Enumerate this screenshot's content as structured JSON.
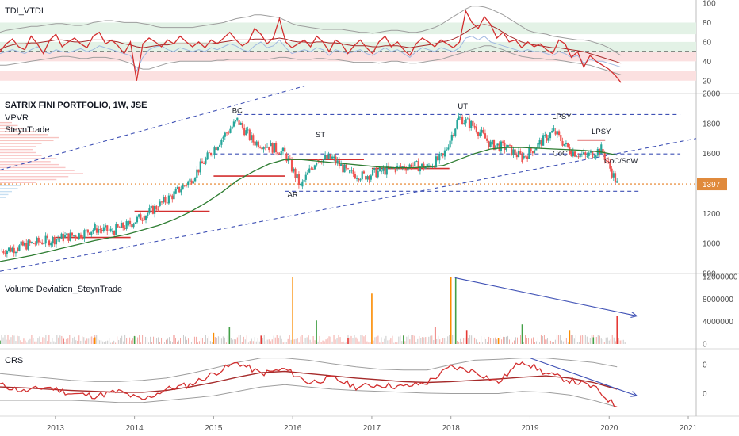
{
  "colors": {
    "candle_up": "#26a69a",
    "candle_down": "#ef5350",
    "red_line": "#d32f2f",
    "ma_green": "#2e7d32",
    "navy": "#3f51b5",
    "gray": "#9e9e9e",
    "orange": "#e67e22",
    "zone_green": "#e3f2e6",
    "zone_red": "#fbe0e0",
    "price_label_bg": "#e08a3c",
    "axis_text": "#4a4a4a"
  },
  "chart_data": [
    {
      "type": "line",
      "panel": "tdi",
      "title": "TDI_VTDI",
      "ylim": [
        10,
        100
      ],
      "yticks": [
        "100",
        "80",
        "60",
        "40",
        "20"
      ],
      "bands": [
        {
          "from": 68,
          "to": 80,
          "color": "green"
        },
        {
          "from": 50,
          "to": 60,
          "color": "green"
        },
        {
          "from": 40,
          "to": 50,
          "color": "red"
        },
        {
          "from": 20,
          "to": 30,
          "color": "red"
        }
      ],
      "midline": 50,
      "series": [
        {
          "key": "fast",
          "color": "red",
          "values": [
            50,
            58,
            63,
            55,
            52,
            66,
            58,
            48,
            62,
            68,
            55,
            60,
            64,
            58,
            54,
            66,
            70,
            58,
            62,
            56,
            48,
            60,
            20,
            58,
            64,
            60,
            55,
            62,
            58,
            66,
            60,
            55,
            60,
            54,
            62,
            58,
            64,
            70,
            62,
            56,
            60,
            74,
            68,
            58,
            64,
            84,
            60,
            54,
            58,
            62,
            55,
            66,
            60,
            50,
            62,
            58,
            48,
            56,
            62,
            54,
            48,
            60,
            66,
            55,
            60,
            52,
            46,
            58,
            64,
            60,
            55,
            62,
            58,
            54,
            60,
            92,
            80,
            74,
            86,
            78,
            64,
            70,
            60,
            62,
            54,
            60,
            55,
            58,
            52,
            48,
            62,
            58,
            44,
            50,
            34,
            46,
            40,
            36,
            32,
            26,
            18
          ]
        },
        {
          "key": "slow",
          "color": "darkred",
          "values": [
            52,
            55,
            57,
            58,
            58,
            59,
            59,
            60,
            61,
            62,
            62,
            61,
            60,
            60,
            61,
            62,
            62,
            62,
            61,
            60,
            58,
            57,
            55,
            54,
            55,
            56,
            57,
            57,
            58,
            58,
            58,
            58,
            58,
            58,
            58,
            59,
            60,
            61,
            62,
            62,
            62,
            63,
            63,
            62,
            63,
            64,
            63,
            61,
            60,
            60,
            59,
            60,
            60,
            59,
            59,
            58,
            57,
            56,
            56,
            56,
            55,
            55,
            56,
            56,
            56,
            55,
            54,
            55,
            56,
            57,
            58,
            60,
            61,
            63,
            66,
            70,
            74,
            77,
            78,
            77,
            74,
            70,
            66,
            63,
            60,
            58,
            57,
            56,
            55,
            54,
            54,
            53,
            52,
            51,
            50,
            48,
            46,
            44,
            42,
            40,
            38
          ]
        },
        {
          "key": "upper",
          "color": "gray",
          "values": [
            70,
            72,
            73,
            74,
            75,
            76,
            76,
            77,
            78,
            79,
            79,
            78,
            77,
            77,
            78,
            80,
            81,
            82,
            82,
            81,
            80,
            80,
            80,
            79,
            78,
            76,
            75,
            75,
            75,
            75,
            75,
            75,
            76,
            77,
            78,
            79,
            80,
            82,
            84,
            85,
            86,
            88,
            88,
            87,
            86,
            85,
            82,
            79,
            77,
            76,
            75,
            74,
            73,
            73,
            73,
            73,
            72,
            71,
            70,
            70,
            69,
            70,
            71,
            72,
            72,
            71,
            70,
            70,
            71,
            73,
            75,
            78,
            82,
            86,
            90,
            94,
            97,
            97,
            96,
            94,
            91,
            88,
            84,
            80,
            76,
            72,
            70,
            69,
            68,
            66,
            65,
            64,
            63,
            62,
            62,
            61,
            59,
            57,
            54,
            50,
            46
          ]
        },
        {
          "key": "lower",
          "color": "gray",
          "values": [
            36,
            36,
            37,
            38,
            39,
            40,
            41,
            42,
            43,
            44,
            45,
            45,
            44,
            43,
            43,
            44,
            44,
            44,
            43,
            42,
            40,
            38,
            34,
            32,
            32,
            34,
            36,
            38,
            39,
            40,
            40,
            40,
            40,
            40,
            40,
            41,
            41,
            42,
            42,
            42,
            42,
            42,
            42,
            42,
            43,
            44,
            44,
            43,
            42,
            42,
            42,
            43,
            43,
            42,
            42,
            41,
            40,
            39,
            39,
            39,
            39,
            38,
            39,
            40,
            40,
            39,
            38,
            38,
            39,
            40,
            41,
            42,
            44,
            46,
            48,
            50,
            52,
            54,
            56,
            56,
            54,
            52,
            49,
            47,
            45,
            44,
            43,
            43,
            42,
            42,
            41,
            40,
            39,
            38,
            37,
            36,
            34,
            32,
            30,
            28,
            26
          ]
        },
        {
          "key": "vol",
          "color": "lightblue",
          "values": [
            48,
            50,
            52,
            50,
            48,
            52,
            55,
            50,
            48,
            52,
            50,
            49,
            51,
            53,
            50,
            52,
            56,
            54,
            52,
            50,
            48,
            46,
            30,
            44,
            52,
            55,
            56,
            52,
            50,
            54,
            52,
            50,
            52,
            50,
            54,
            52,
            55,
            58,
            56,
            52,
            50,
            56,
            60,
            54,
            56,
            62,
            54,
            48,
            50,
            52,
            50,
            54,
            52,
            46,
            52,
            50,
            48,
            50,
            52,
            48,
            46,
            50,
            54,
            50,
            52,
            48,
            44,
            50,
            54,
            52,
            50,
            54,
            52,
            50,
            54,
            64,
            66,
            62,
            66,
            60,
            58,
            56,
            54,
            52,
            50,
            52,
            50,
            50,
            48,
            46,
            50,
            48,
            44,
            46,
            38,
            42,
            40,
            40,
            38,
            36,
            34
          ]
        }
      ]
    },
    {
      "type": "candlestick",
      "panel": "price",
      "title": "SATRIX FINI PORTFOLIO, 1W, JSE",
      "indicators": [
        "VPVR",
        "SteynTrade"
      ],
      "ylim": [
        800,
        2000
      ],
      "yticks": [
        "2000",
        "1800",
        "1600",
        "1400",
        "1200",
        "1000",
        "800"
      ],
      "last_price": "1397",
      "x": [
        2012.3,
        2012.5,
        2012.7,
        2012.9,
        2013.1,
        2013.3,
        2013.5,
        2013.7,
        2013.9,
        2014.1,
        2014.3,
        2014.5,
        2014.7,
        2014.9,
        2015.1,
        2015.3,
        2015.5,
        2015.7,
        2015.9,
        2016.1,
        2016.3,
        2016.5,
        2016.7,
        2016.9,
        2017.1,
        2017.3,
        2017.5,
        2017.7,
        2017.9,
        2018.1,
        2018.3,
        2018.5,
        2018.7,
        2018.9,
        2019.1,
        2019.3,
        2019.5,
        2019.7,
        2019.9,
        2020.1
      ],
      "close": [
        950,
        970,
        1000,
        1020,
        1040,
        1060,
        1100,
        1080,
        1120,
        1180,
        1250,
        1330,
        1420,
        1560,
        1700,
        1820,
        1680,
        1650,
        1600,
        1380,
        1560,
        1570,
        1470,
        1450,
        1480,
        1500,
        1520,
        1510,
        1580,
        1840,
        1780,
        1660,
        1640,
        1570,
        1660,
        1750,
        1620,
        1580,
        1630,
        1397
      ],
      "open": [
        930,
        950,
        970,
        1000,
        1020,
        1040,
        1060,
        1100,
        1080,
        1120,
        1180,
        1250,
        1330,
        1420,
        1560,
        1700,
        1820,
        1680,
        1650,
        1600,
        1380,
        1560,
        1570,
        1470,
        1450,
        1480,
        1500,
        1520,
        1510,
        1580,
        1840,
        1780,
        1660,
        1640,
        1570,
        1660,
        1750,
        1620,
        1580,
        1630
      ],
      "ma": [
        880,
        900,
        920,
        945,
        970,
        995,
        1020,
        1040,
        1060,
        1090,
        1120,
        1160,
        1210,
        1270,
        1340,
        1420,
        1480,
        1530,
        1560,
        1560,
        1550,
        1540,
        1530,
        1520,
        1510,
        1505,
        1505,
        1510,
        1520,
        1560,
        1600,
        1630,
        1640,
        1640,
        1635,
        1630,
        1625,
        1620,
        1610,
        1590
      ],
      "hlines": [
        {
          "y": 1860,
          "from": 2015.3,
          "to": 2020.9,
          "style": "dashed",
          "color": "navy"
        },
        {
          "y": 1597,
          "from": 2015.0,
          "to": 2020.9,
          "style": "dashed",
          "color": "navy"
        },
        {
          "y": 1348,
          "from": 2015.9,
          "to": 2020.4,
          "style": "dashed",
          "color": "navy"
        },
        {
          "y": 1397,
          "from": 2012.3,
          "to": 2021.1,
          "style": "dotted",
          "color": "orange"
        },
        {
          "y": 1450,
          "from": 2015.0,
          "to": 2015.9,
          "style": "solid",
          "color": "red"
        },
        {
          "y": 1560,
          "from": 2016.0,
          "to": 2016.9,
          "style": "solid",
          "color": "red"
        },
        {
          "y": 1500,
          "from": 2017.0,
          "to": 2017.98,
          "style": "solid",
          "color": "red"
        },
        {
          "y": 1690,
          "from": 2019.6,
          "to": 2019.95,
          "style": "solid",
          "color": "red"
        },
        {
          "y": 1215,
          "from": 2014.0,
          "to": 2014.95,
          "style": "solid",
          "color": "red"
        },
        {
          "y": 1040,
          "from": 2013.0,
          "to": 2013.95,
          "style": "solid",
          "color": "red"
        }
      ],
      "trendlines": [
        {
          "x1": 2012.3,
          "y1": 1490,
          "x2": 2016.15,
          "y2": 2050
        },
        {
          "x1": 2012.3,
          "y1": 815,
          "x2": 2021.1,
          "y2": 1700
        }
      ],
      "annotations": [
        {
          "text": "BC",
          "x": 2015.3,
          "y": 1870
        },
        {
          "text": "ST",
          "x": 2016.35,
          "y": 1710
        },
        {
          "text": "AR",
          "x": 2016.0,
          "y": 1310
        },
        {
          "text": "UT",
          "x": 2018.15,
          "y": 1900
        },
        {
          "text": "LPSY",
          "x": 2019.4,
          "y": 1830
        },
        {
          "text": "LPSY",
          "x": 2019.9,
          "y": 1730
        },
        {
          "text": "CoC",
          "x": 2019.38,
          "y": 1585
        },
        {
          "text": "CoC/SoW",
          "x": 2020.15,
          "y": 1535
        }
      ]
    },
    {
      "type": "bar",
      "panel": "volume",
      "title": "Volume Deviation_SteynTrade",
      "ylim": [
        0,
        12000000
      ],
      "yticks": [
        "12000000",
        "8000000",
        "4000000",
        "0"
      ],
      "x": [
        2012.3,
        2013.1,
        2013.5,
        2014.0,
        2014.5,
        2015.0,
        2015.2,
        2015.6,
        2016.0,
        2016.3,
        2016.7,
        2017.0,
        2017.4,
        2017.8,
        2018.0,
        2018.06,
        2018.2,
        2018.6,
        2018.9,
        2019.2,
        2019.5,
        2019.8,
        2020.1
      ],
      "values": [
        600000,
        900000,
        1200000,
        1400000,
        1600000,
        2000000,
        3000000,
        1500000,
        12500000,
        4200000,
        1100000,
        9000000,
        1500000,
        3000000,
        12500000,
        12000000,
        2500000,
        1100000,
        3500000,
        800000,
        2500000,
        1200000,
        5000000
      ],
      "arrows": [
        {
          "x1": 2018.05,
          "y1": 11800000,
          "x2": 2020.35,
          "y2": 5000000
        }
      ]
    },
    {
      "type": "line",
      "panel": "crs",
      "title": "CRS",
      "yticks": [
        "0",
        "0"
      ],
      "x": [
        2012.3,
        2012.6,
        2012.9,
        2013.2,
        2013.5,
        2013.8,
        2014.1,
        2014.4,
        2014.7,
        2015.0,
        2015.3,
        2015.6,
        2015.9,
        2016.2,
        2016.5,
        2016.8,
        2017.1,
        2017.4,
        2017.7,
        2018.0,
        2018.3,
        2018.6,
        2018.9,
        2019.2,
        2019.5,
        2019.8,
        2020.1
      ],
      "series": [
        {
          "key": "crs",
          "color": "red",
          "values": [
            0.35,
            0.2,
            0.3,
            0.15,
            0.1,
            0.2,
            0.0,
            0.25,
            0.35,
            0.6,
            0.85,
            0.6,
            0.7,
            0.4,
            0.5,
            0.3,
            0.35,
            0.3,
            0.4,
            0.75,
            0.65,
            0.4,
            0.9,
            0.6,
            0.45,
            0.3,
            -0.15
          ]
        },
        {
          "key": "ma",
          "color": "darkred",
          "values": [
            0.3,
            0.28,
            0.25,
            0.22,
            0.2,
            0.18,
            0.18,
            0.22,
            0.3,
            0.4,
            0.52,
            0.62,
            0.65,
            0.6,
            0.55,
            0.5,
            0.46,
            0.42,
            0.4,
            0.42,
            0.45,
            0.48,
            0.52,
            0.55,
            0.5,
            0.4,
            0.25
          ]
        },
        {
          "key": "upper",
          "color": "gray",
          "values": [
            0.6,
            0.55,
            0.5,
            0.45,
            0.42,
            0.42,
            0.45,
            0.5,
            0.6,
            0.72,
            0.85,
            0.95,
            0.95,
            0.9,
            0.82,
            0.75,
            0.7,
            0.68,
            0.68,
            0.8,
            0.9,
            0.92,
            0.95,
            0.95,
            0.9,
            0.85,
            0.75
          ]
        },
        {
          "key": "lower",
          "color": "gray",
          "values": [
            0.0,
            0.0,
            0.0,
            0.0,
            -0.02,
            -0.05,
            -0.05,
            0.0,
            0.05,
            0.1,
            0.2,
            0.3,
            0.35,
            0.3,
            0.25,
            0.22,
            0.2,
            0.18,
            0.16,
            0.15,
            0.15,
            0.15,
            0.2,
            0.18,
            0.12,
            0.0,
            -0.15
          ]
        }
      ],
      "arrows": [
        {
          "x1": 2019.0,
          "y1": 0.95,
          "x2": 2020.35,
          "y2": 0.1
        }
      ]
    }
  ],
  "xaxis": {
    "ticks": [
      "2013",
      "2014",
      "2015",
      "2016",
      "2017",
      "2018",
      "2019",
      "2020",
      "2021"
    ],
    "range": [
      2012.3,
      2021.1
    ]
  }
}
